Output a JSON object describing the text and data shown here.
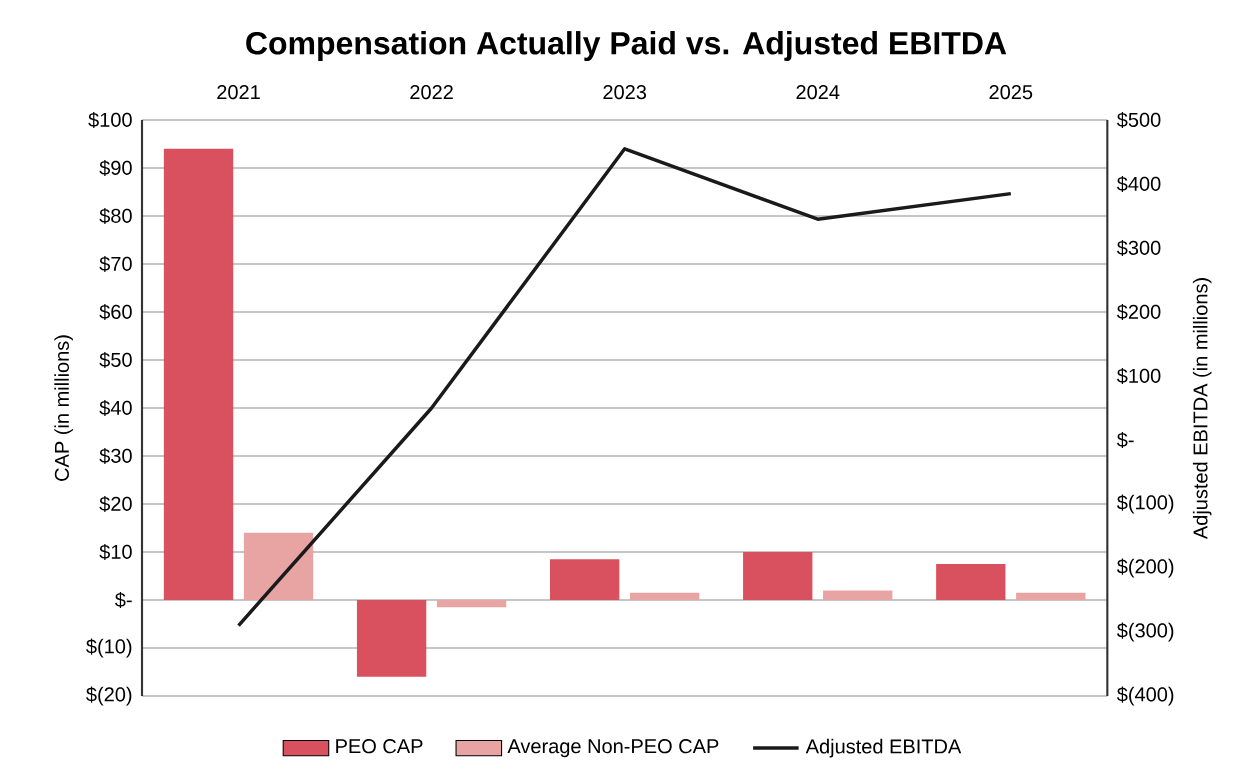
{
  "chart_data": {
    "type": "bar",
    "title": "Compensation Actually Paid vs. Adjusted EBITDA",
    "categories": [
      "2021",
      "2022",
      "2023",
      "2024",
      "2025"
    ],
    "series": [
      {
        "name": "PEO CAP",
        "type": "bar",
        "color": "#d9515e",
        "values": [
          94,
          -16,
          8.5,
          10,
          7.5
        ]
      },
      {
        "name": "Average Non-PEO CAP",
        "type": "bar",
        "color": "#e8a3a3",
        "values": [
          14,
          -1.5,
          1.5,
          2,
          1.5
        ]
      },
      {
        "name": "Adjusted EBITDA",
        "type": "line",
        "axis": "y2",
        "color": "#1a1a1a",
        "values": [
          -290,
          50,
          455,
          345,
          385
        ]
      }
    ],
    "ylabel": "CAP (in millions)",
    "y2label": "Adjusted EBITDA (in millions)",
    "ylim": [
      -20,
      100
    ],
    "yticks": [
      {
        "value": -20,
        "label": "$(20)"
      },
      {
        "value": -10,
        "label": "$(10)"
      },
      {
        "value": 0,
        "label": "$-"
      },
      {
        "value": 10,
        "label": "$10"
      },
      {
        "value": 20,
        "label": "$20"
      },
      {
        "value": 30,
        "label": "$30"
      },
      {
        "value": 40,
        "label": "$40"
      },
      {
        "value": 50,
        "label": "$50"
      },
      {
        "value": 60,
        "label": "$60"
      },
      {
        "value": 70,
        "label": "$70"
      },
      {
        "value": 80,
        "label": "$80"
      },
      {
        "value": 90,
        "label": "$90"
      },
      {
        "value": 100,
        "label": "$100"
      }
    ],
    "y2lim": [
      -400,
      500
    ],
    "y2ticks": [
      {
        "value": -400,
        "label": "$(400)"
      },
      {
        "value": -300,
        "label": "$(300)"
      },
      {
        "value": -200,
        "label": "$(200)"
      },
      {
        "value": -100,
        "label": "$(100)"
      },
      {
        "value": 0,
        "label": "$-"
      },
      {
        "value": 100,
        "label": "$100"
      },
      {
        "value": 200,
        "label": "$200"
      },
      {
        "value": 300,
        "label": "$300"
      },
      {
        "value": 400,
        "label": "$400"
      },
      {
        "value": 500,
        "label": "$500"
      }
    ],
    "grid": "y",
    "legend": "bottom"
  }
}
